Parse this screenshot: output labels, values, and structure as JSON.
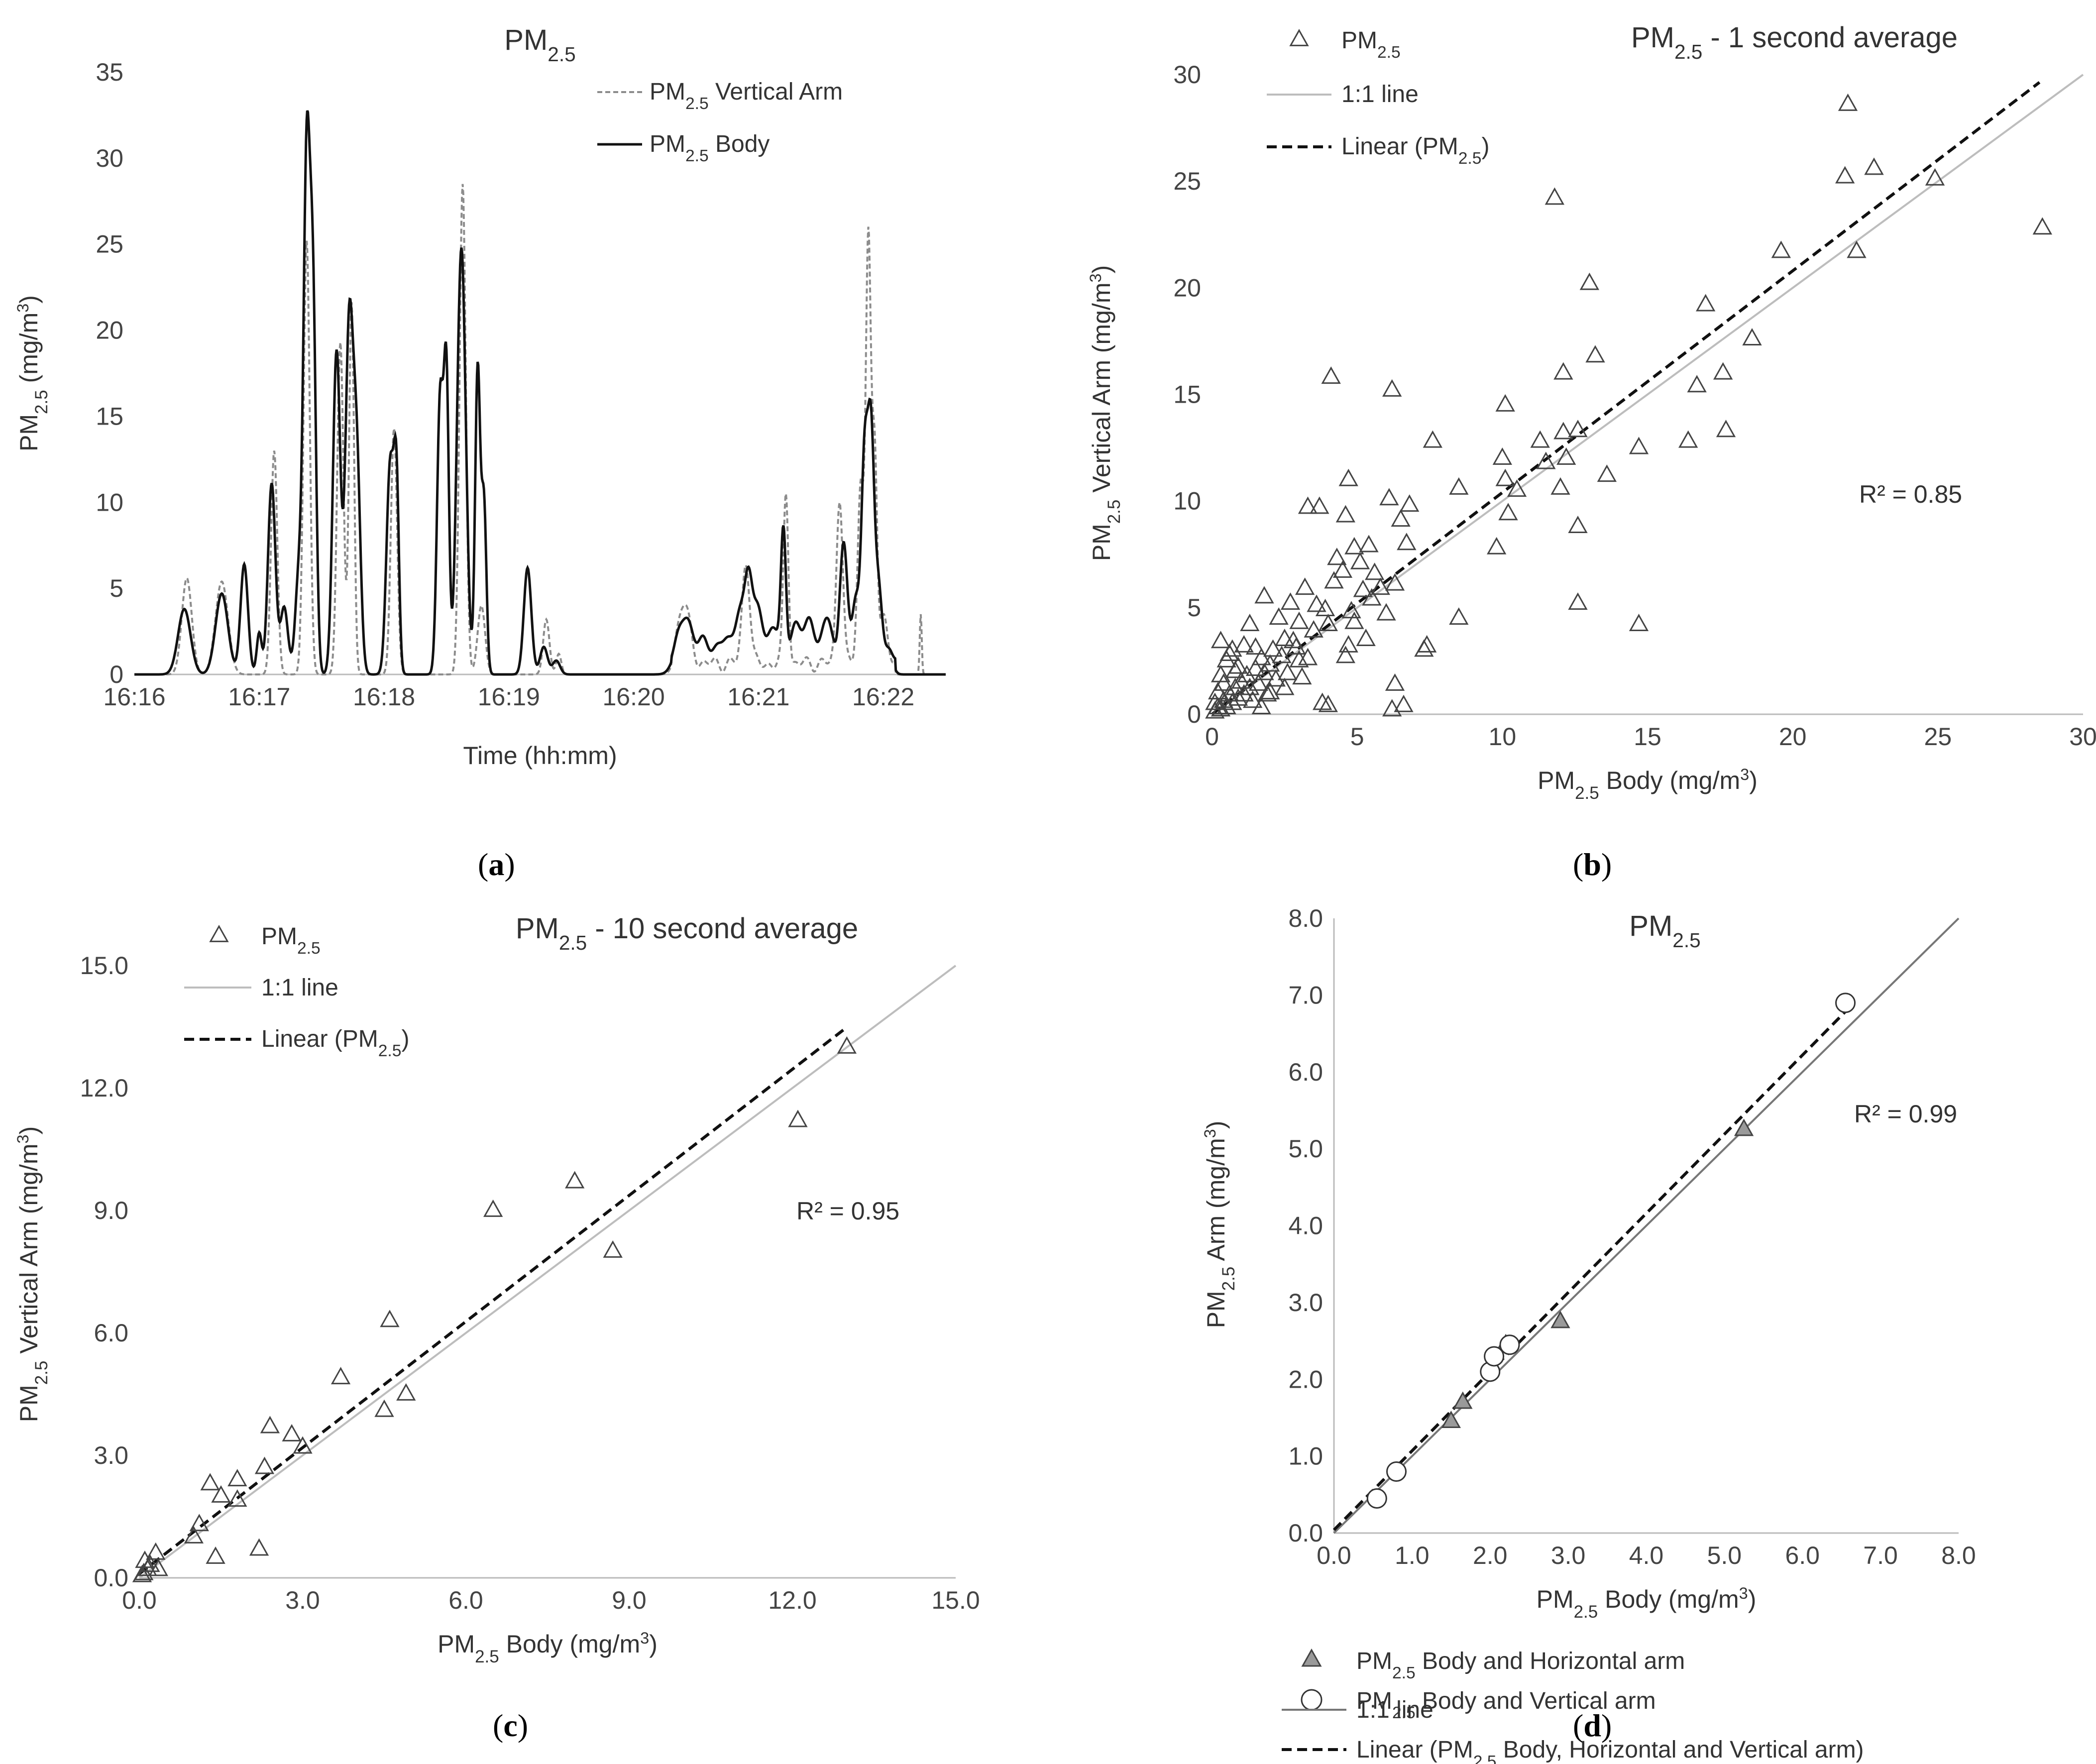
{
  "panel_labels": [
    "(a)",
    "(b)",
    "(c)",
    "(d)"
  ],
  "chart_data": [
    {
      "id": "a",
      "type": "line",
      "title": "PM2.5",
      "xlabel": "Time (hh:mm)",
      "ylabel": "PM2.5 (mg/m3)",
      "xlim": [
        0,
        6.5
      ],
      "ylim": [
        0,
        35
      ],
      "x_ticks": [
        "16:16",
        "16:17",
        "16:18",
        "16:19",
        "16:20",
        "16:21",
        "16:22"
      ],
      "y_ticks": [
        0,
        5,
        10,
        15,
        20,
        25,
        30,
        35
      ],
      "legend": [
        "PM2.5 Vertical Arm",
        "PM2.5 Body"
      ],
      "peaks_body": [
        [
          0.4,
          3.8,
          0.05
        ],
        [
          0.7,
          4.7,
          0.05
        ],
        [
          0.88,
          6.4,
          0.03
        ],
        [
          1.0,
          2.4,
          0.02
        ],
        [
          1.1,
          11.1,
          0.03
        ],
        [
          1.2,
          3.9,
          0.03
        ],
        [
          1.32,
          6.0,
          0.03
        ],
        [
          1.38,
          28.5,
          0.025
        ],
        [
          1.43,
          21.5,
          0.025
        ],
        [
          1.62,
          18.8,
          0.03
        ],
        [
          1.72,
          19.7,
          0.03
        ],
        [
          1.78,
          12.6,
          0.03
        ],
        [
          2.05,
          12.3,
          0.03
        ],
        [
          2.1,
          10.0,
          0.02
        ],
        [
          2.45,
          16.2,
          0.025
        ],
        [
          2.5,
          16.6,
          0.02
        ],
        [
          2.62,
          24.8,
          0.035
        ],
        [
          2.75,
          17.7,
          0.02
        ],
        [
          2.8,
          10.0,
          0.02
        ],
        [
          3.15,
          6.2,
          0.03
        ],
        [
          3.28,
          1.6,
          0.03
        ],
        [
          3.38,
          0.8,
          0.03
        ],
        [
          4.4,
          2.8,
          0.06
        ],
        [
          4.55,
          1.6,
          0.05
        ],
        [
          4.72,
          1.8,
          0.05
        ],
        [
          4.85,
          3.0,
          0.04
        ],
        [
          4.92,
          5.0,
          0.03
        ],
        [
          5.0,
          3.2,
          0.04
        ],
        [
          5.12,
          2.4,
          0.04
        ],
        [
          5.2,
          7.3,
          0.02
        ],
        [
          5.3,
          2.5,
          0.05
        ],
        [
          5.42,
          2.6,
          0.04
        ],
        [
          5.55,
          2.8,
          0.04
        ],
        [
          5.68,
          7.2,
          0.03
        ],
        [
          5.78,
          4.0,
          0.03
        ],
        [
          5.85,
          12.0,
          0.025
        ],
        [
          5.9,
          12.7,
          0.025
        ],
        [
          5.96,
          5.0,
          0.03
        ],
        [
          6.05,
          1.0,
          0.03
        ]
      ],
      "peaks_arm": [
        [
          0.42,
          5.6,
          0.04
        ],
        [
          0.7,
          5.4,
          0.05
        ],
        [
          1.12,
          13.0,
          0.025
        ],
        [
          1.38,
          25.2,
          0.025
        ],
        [
          1.65,
          19.3,
          0.025
        ],
        [
          1.74,
          21.6,
          0.02
        ],
        [
          2.08,
          14.3,
          0.025
        ],
        [
          2.63,
          28.5,
          0.025
        ],
        [
          2.78,
          4.0,
          0.03
        ],
        [
          3.3,
          3.2,
          0.025
        ],
        [
          3.4,
          1.2,
          0.02
        ],
        [
          4.4,
          3.5,
          0.05
        ],
        [
          4.9,
          6.0,
          0.03
        ],
        [
          5.22,
          10.0,
          0.02
        ],
        [
          5.65,
          9.8,
          0.025
        ],
        [
          5.82,
          10.5,
          0.025
        ],
        [
          5.88,
          24.3,
          0.02
        ],
        [
          5.93,
          12.0,
          0.02
        ],
        [
          6.0,
          3.0,
          0.03
        ],
        [
          6.3,
          3.5,
          0.008
        ]
      ]
    },
    {
      "id": "b",
      "type": "scatter",
      "title": "PM2.5 - 1 second average",
      "xlabel": "PM2.5 Body (mg/m3)",
      "ylabel": "PM2.5 Vertical Arm (mg/m3)",
      "xlim": [
        0,
        30
      ],
      "ylim": [
        0,
        30
      ],
      "x_ticks": [
        0,
        5,
        10,
        15,
        20,
        25,
        30
      ],
      "y_ticks": [
        0,
        5,
        10,
        15,
        20,
        25,
        30
      ],
      "legend": [
        "PM2.5",
        "1:1 line",
        "Linear (PM2.5)"
      ],
      "r2": "R² = 0.85",
      "fit": {
        "slope": 1.04,
        "intercept": 0.0,
        "x_end": 28.5
      },
      "points": [
        [
          0.1,
          0.1
        ],
        [
          0.2,
          0.3
        ],
        [
          0.3,
          0.2
        ],
        [
          0.4,
          0.6
        ],
        [
          0.5,
          0.3
        ],
        [
          0.6,
          0.9
        ],
        [
          0.7,
          0.5
        ],
        [
          0.8,
          1.2
        ],
        [
          0.9,
          0.7
        ],
        [
          1.0,
          1.5
        ],
        [
          1.1,
          0.9
        ],
        [
          1.2,
          1.8
        ],
        [
          1.3,
          1.2
        ],
        [
          1.4,
          0.6
        ],
        [
          1.5,
          2.1
        ],
        [
          1.6,
          1.4
        ],
        [
          1.7,
          2.6
        ],
        [
          1.8,
          1.9
        ],
        [
          1.9,
          0.9
        ],
        [
          2.0,
          2.3
        ],
        [
          2.1,
          3.0
        ],
        [
          2.2,
          1.6
        ],
        [
          2.4,
          2.7
        ],
        [
          2.6,
          1.9
        ],
        [
          2.8,
          3.4
        ],
        [
          3.0,
          2.5
        ],
        [
          0.2,
          1.0
        ],
        [
          0.3,
          1.8
        ],
        [
          0.5,
          2.5
        ],
        [
          0.7,
          3.0
        ],
        [
          0.9,
          2.2
        ],
        [
          1.1,
          3.2
        ],
        [
          0.3,
          3.4
        ],
        [
          0.6,
          2.8
        ],
        [
          1.3,
          4.2
        ],
        [
          1.8,
          5.5
        ],
        [
          2.3,
          4.5
        ],
        [
          2.7,
          5.2
        ],
        [
          3.2,
          5.9
        ],
        [
          3.3,
          9.7
        ],
        [
          3.7,
          9.7
        ],
        [
          4.1,
          15.8
        ],
        [
          3.8,
          0.5
        ],
        [
          4.0,
          0.4
        ],
        [
          3.5,
          3.9
        ],
        [
          3.9,
          4.9
        ],
        [
          4.2,
          6.2
        ],
        [
          4.3,
          7.3
        ],
        [
          4.5,
          6.7
        ],
        [
          4.6,
          9.3
        ],
        [
          4.7,
          11.0
        ],
        [
          4.9,
          7.8
        ],
        [
          5.1,
          7.1
        ],
        [
          5.2,
          5.8
        ],
        [
          5.4,
          7.9
        ],
        [
          5.6,
          6.6
        ],
        [
          5.8,
          5.9
        ],
        [
          6.0,
          4.7
        ],
        [
          6.1,
          10.1
        ],
        [
          6.2,
          15.2
        ],
        [
          6.3,
          6.1
        ],
        [
          6.5,
          9.1
        ],
        [
          6.7,
          8.0
        ],
        [
          6.8,
          9.8
        ],
        [
          6.3,
          1.4
        ],
        [
          6.2,
          0.2
        ],
        [
          6.6,
          0.4
        ],
        [
          7.3,
          3.0
        ],
        [
          7.4,
          3.2
        ],
        [
          7.6,
          12.8
        ],
        [
          8.5,
          10.6
        ],
        [
          8.5,
          4.5
        ],
        [
          9.8,
          7.8
        ],
        [
          10.0,
          12.0
        ],
        [
          10.1,
          11.0
        ],
        [
          10.2,
          9.4
        ],
        [
          10.1,
          14.5
        ],
        [
          10.5,
          10.5
        ],
        [
          11.3,
          12.8
        ],
        [
          11.5,
          11.8
        ],
        [
          11.8,
          24.2
        ],
        [
          12.0,
          10.6
        ],
        [
          12.1,
          13.2
        ],
        [
          12.2,
          12.0
        ],
        [
          12.1,
          16.0
        ],
        [
          12.6,
          13.3
        ],
        [
          12.6,
          8.8
        ],
        [
          12.6,
          5.2
        ],
        [
          13.0,
          20.2
        ],
        [
          13.2,
          16.8
        ],
        [
          13.6,
          11.2
        ],
        [
          14.7,
          12.5
        ],
        [
          14.7,
          4.2
        ],
        [
          16.4,
          12.8
        ],
        [
          16.7,
          15.4
        ],
        [
          17.0,
          19.2
        ],
        [
          17.6,
          16.0
        ],
        [
          17.7,
          13.3
        ],
        [
          18.6,
          17.6
        ],
        [
          19.6,
          21.7
        ],
        [
          21.8,
          25.2
        ],
        [
          21.9,
          28.6
        ],
        [
          22.2,
          21.7
        ],
        [
          22.8,
          25.6
        ],
        [
          24.9,
          25.1
        ],
        [
          28.6,
          22.8
        ],
        [
          0.1,
          0.5
        ],
        [
          0.4,
          1.4
        ],
        [
          0.8,
          2.0
        ],
        [
          1.5,
          3.1
        ],
        [
          2.5,
          3.5
        ],
        [
          3.0,
          4.3
        ],
        [
          3.6,
          5.1
        ],
        [
          2.0,
          1.0
        ],
        [
          2.5,
          1.2
        ],
        [
          3.1,
          1.7
        ],
        [
          1.7,
          0.3
        ],
        [
          2.9,
          3.1
        ],
        [
          4.0,
          4.2
        ],
        [
          4.8,
          4.8
        ],
        [
          5.5,
          5.4
        ],
        [
          3.3,
          2.6
        ],
        [
          4.6,
          2.7
        ],
        [
          4.7,
          3.2
        ],
        [
          4.9,
          4.3
        ],
        [
          5.3,
          3.5
        ]
      ]
    },
    {
      "id": "c",
      "type": "scatter",
      "title": "PM2.5 - 10 second average",
      "xlabel": "PM2.5 Body (mg/m3)",
      "ylabel": "PM2.5 Vertical Arm (mg/m3)",
      "xlim": [
        0,
        15
      ],
      "ylim": [
        0,
        15
      ],
      "x_ticks": [
        "0.0",
        "3.0",
        "6.0",
        "9.0",
        "12.0",
        "15.0"
      ],
      "y_ticks": [
        "0.0",
        "3.0",
        "6.0",
        "9.0",
        "12.0",
        "15.0"
      ],
      "legend": [
        "PM2.5",
        "1:1 line",
        "Linear (PM2.5)"
      ],
      "r2": "R² = 0.95",
      "fit": {
        "slope": 1.03,
        "intercept": 0.1,
        "x_end": 13.0
      },
      "points": [
        [
          0.05,
          0.05
        ],
        [
          0.08,
          0.1
        ],
        [
          0.1,
          0.4
        ],
        [
          0.15,
          0.2
        ],
        [
          0.2,
          0.3
        ],
        [
          0.3,
          0.6
        ],
        [
          0.35,
          0.2
        ],
        [
          1.0,
          1.0
        ],
        [
          1.1,
          1.3
        ],
        [
          1.3,
          2.3
        ],
        [
          1.4,
          0.5
        ],
        [
          1.5,
          2.0
        ],
        [
          1.8,
          2.4
        ],
        [
          1.8,
          1.9
        ],
        [
          2.2,
          0.7
        ],
        [
          2.3,
          2.7
        ],
        [
          2.4,
          3.7
        ],
        [
          2.8,
          3.5
        ],
        [
          3.0,
          3.2
        ],
        [
          3.7,
          4.9
        ],
        [
          4.5,
          4.1
        ],
        [
          4.6,
          6.3
        ],
        [
          4.9,
          4.5
        ],
        [
          6.5,
          9.0
        ],
        [
          8.0,
          9.7
        ],
        [
          8.7,
          8.0
        ],
        [
          12.1,
          11.2
        ],
        [
          13.0,
          13.0
        ]
      ]
    },
    {
      "id": "d",
      "type": "scatter",
      "title": "PM2.5",
      "xlabel": "PM2.5 Body (mg/m3)",
      "ylabel": "PM2.5 Arm (mg/m3)",
      "xlim": [
        0,
        8
      ],
      "ylim": [
        0,
        8
      ],
      "x_ticks": [
        "0.0",
        "1.0",
        "2.0",
        "3.0",
        "4.0",
        "5.0",
        "6.0",
        "7.0",
        "8.0"
      ],
      "y_ticks": [
        "0.0",
        "1.0",
        "2.0",
        "3.0",
        "4.0",
        "5.0",
        "6.0",
        "7.0",
        "8.0"
      ],
      "legend": [
        "PM2.5 Body and Horizontal arm",
        "PM2.5 Body and Vertical arm",
        "1:1 line",
        "Linear (PM2.5 Body, Horizontal and Vertical arm)"
      ],
      "r2": "R² = 0.99",
      "fit": {
        "slope": 1.03,
        "intercept": 0.04,
        "x_end": 6.6
      },
      "series": [
        {
          "name": "PM2.5 Body and Horizontal arm",
          "points": [
            [
              1.5,
              1.45
            ],
            [
              1.65,
              1.7
            ],
            [
              2.2,
              2.45
            ],
            [
              2.9,
              2.75
            ],
            [
              5.25,
              5.25
            ]
          ]
        },
        {
          "name": "PM2.5 Body and Vertical arm",
          "points": [
            [
              0.55,
              0.45
            ],
            [
              0.8,
              0.8
            ],
            [
              2.0,
              2.1
            ],
            [
              2.05,
              2.3
            ],
            [
              2.25,
              2.45
            ],
            [
              6.55,
              6.9
            ]
          ]
        }
      ]
    }
  ]
}
